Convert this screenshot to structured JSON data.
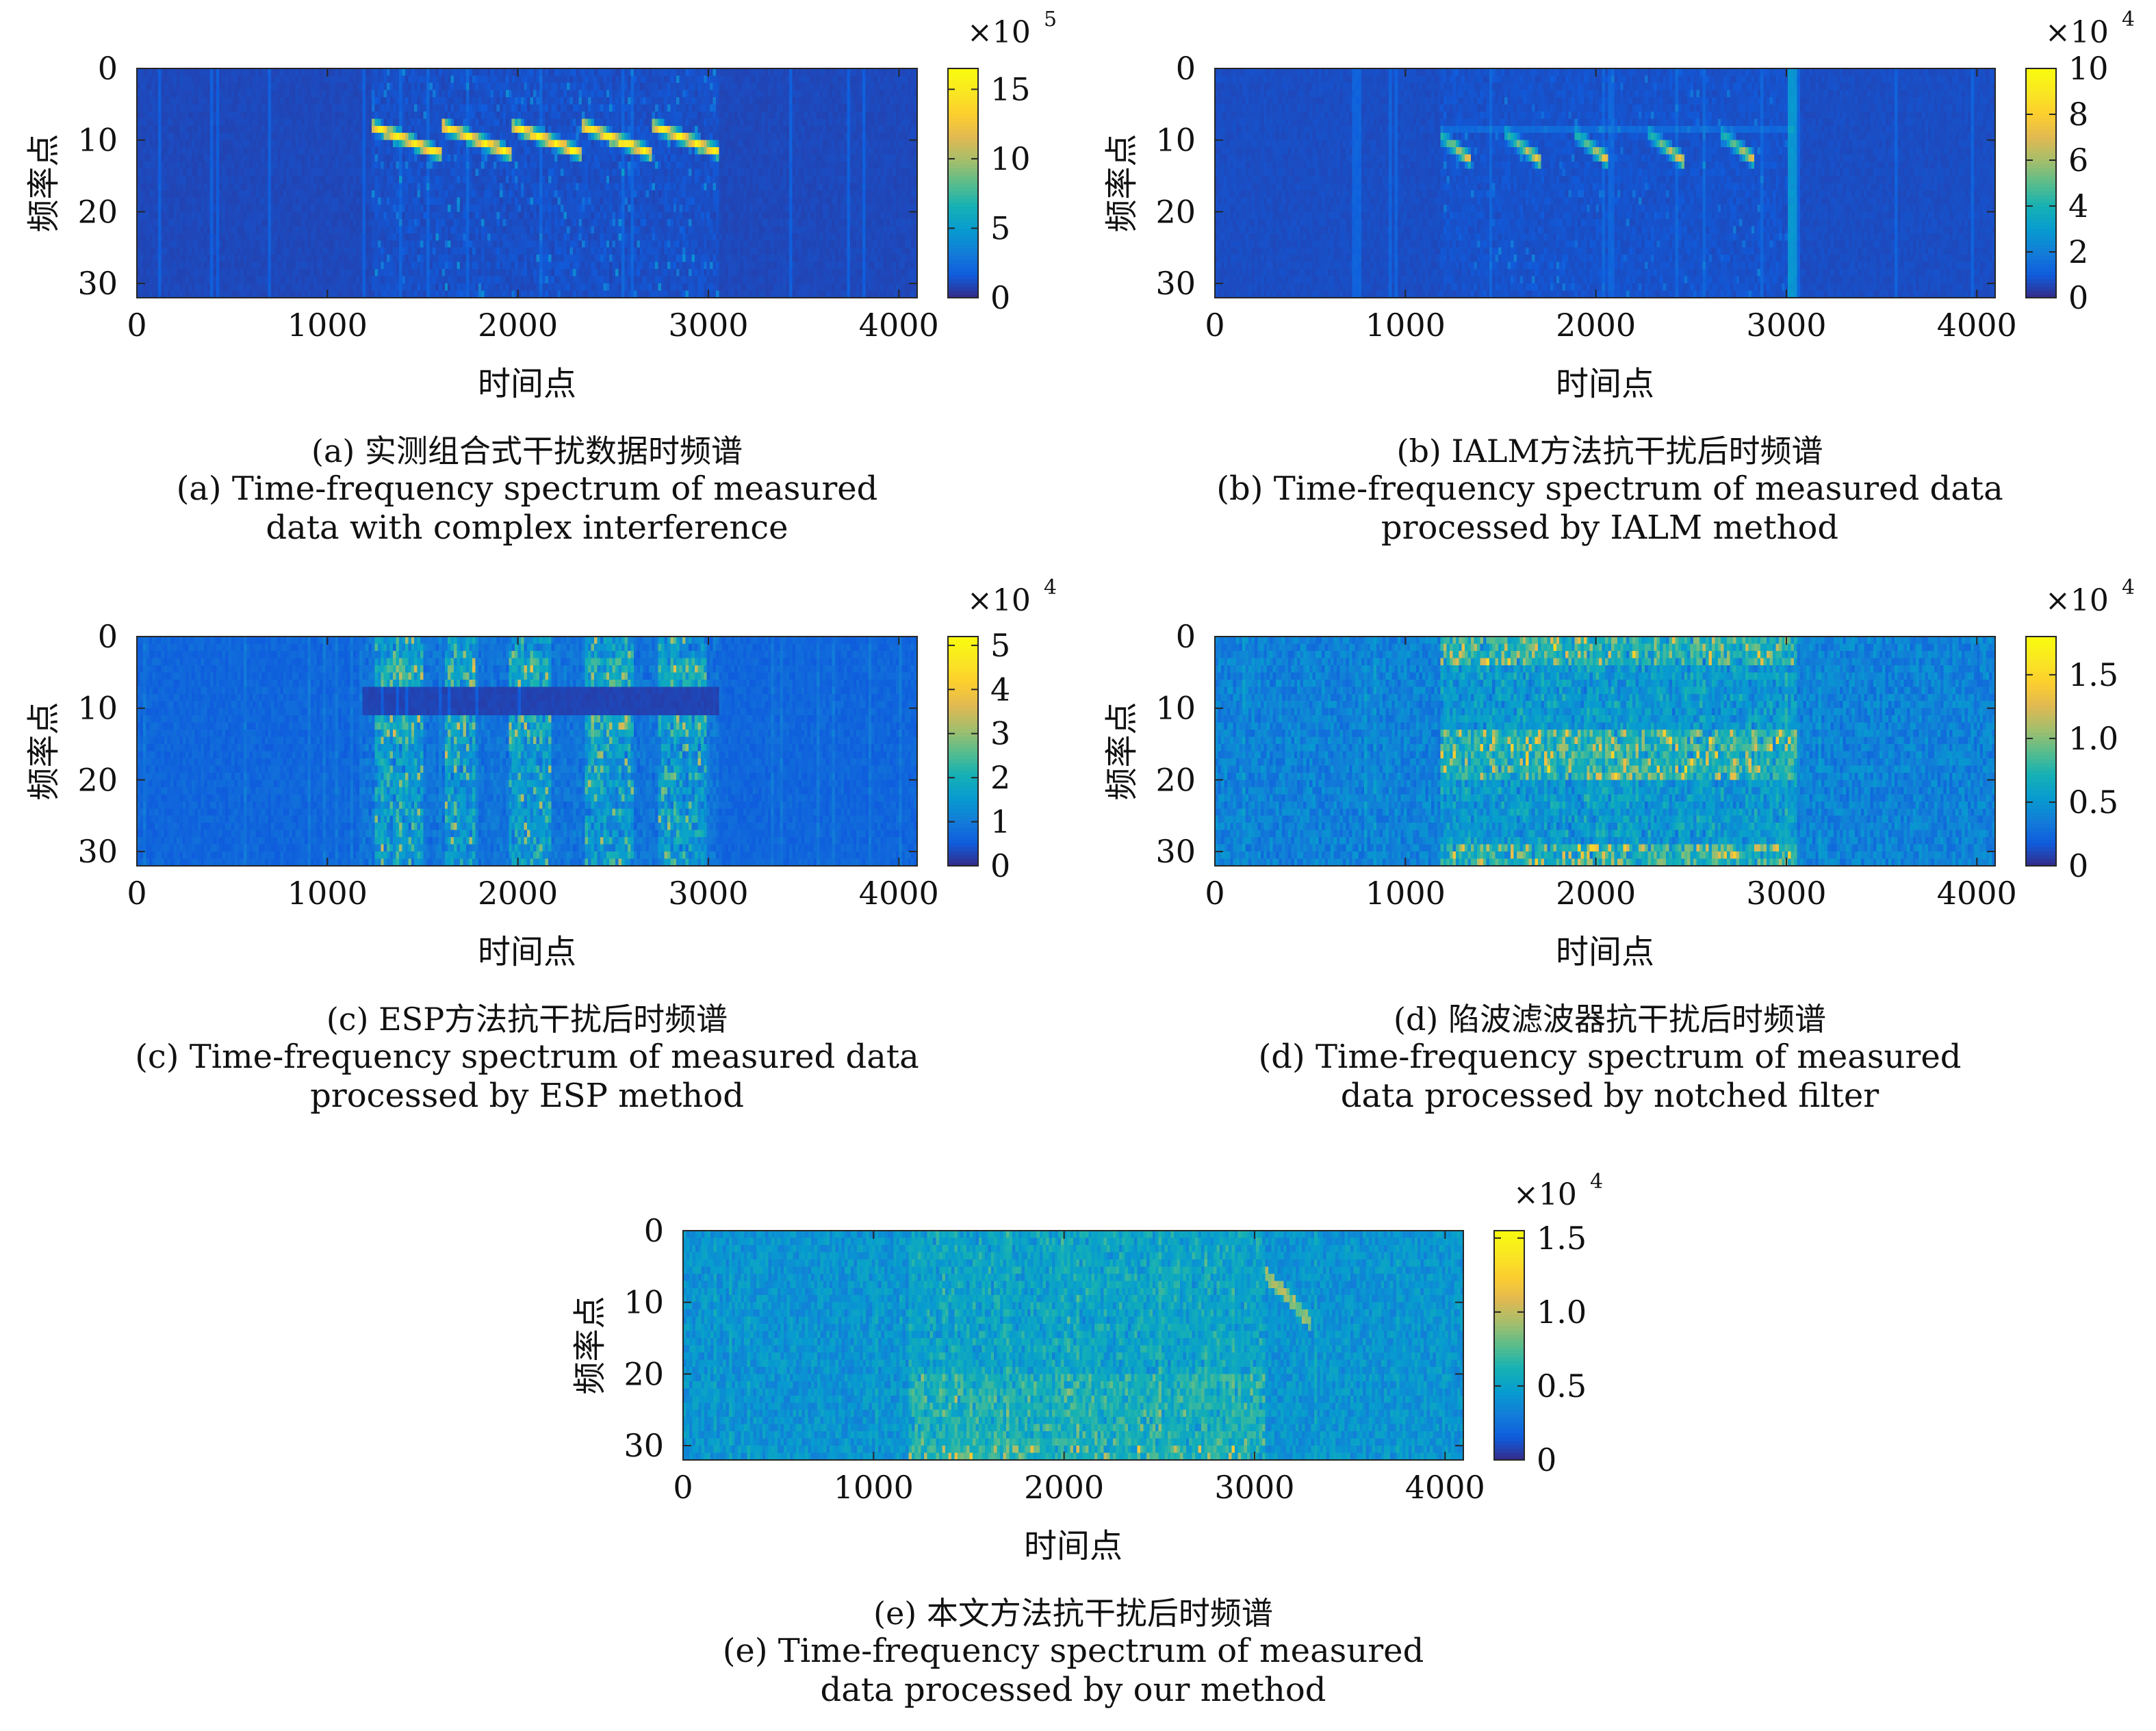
{
  "figure": {
    "x_axis_label": "时间点",
    "y_axis_label": "频率点"
  },
  "chart_data": [
    {
      "id": "a",
      "type": "heatmap",
      "xlabel": "时间点",
      "ylabel": "频率点",
      "xlim": [
        0,
        4096
      ],
      "ylim": [
        0,
        32
      ],
      "x_ticks": [
        "0",
        "1000",
        "2000",
        "3000",
        "4000"
      ],
      "y_ticks": [
        "0",
        "10",
        "20",
        "30"
      ],
      "colormap": "parula",
      "colorbar": {
        "exponent_label": "×10",
        "exponent": "5",
        "vmax": 16.5,
        "ticks": [
          0,
          5,
          10,
          15
        ],
        "tick_labels": [
          "0",
          "5",
          "10",
          "15"
        ]
      },
      "active_span": [
        1230,
        3060
      ],
      "caption_zh": "(a) 实测组合式干扰数据时频谱",
      "caption_en": [
        "(a) Time-frequency spectrum of measured",
        "data with complex interference"
      ]
    },
    {
      "id": "b",
      "type": "heatmap",
      "xlabel": "时间点",
      "ylabel": "频率点",
      "xlim": [
        0,
        4096
      ],
      "ylim": [
        0,
        32
      ],
      "x_ticks": [
        "0",
        "1000",
        "2000",
        "3000",
        "4000"
      ],
      "y_ticks": [
        "0",
        "10",
        "20",
        "30"
      ],
      "colormap": "parula",
      "colorbar": {
        "exponent_label": "×10",
        "exponent": "4",
        "vmax": 10,
        "ticks": [
          0,
          2,
          4,
          6,
          8,
          10
        ],
        "tick_labels": [
          "0",
          "2",
          "4",
          "6",
          "8",
          "10"
        ]
      },
      "active_span": [
        1190,
        3040
      ],
      "caption_zh": "(b) IALM方法抗干扰后时频谱",
      "caption_en": [
        "(b) Time-frequency spectrum of measured data",
        "processed by IALM method"
      ]
    },
    {
      "id": "c",
      "type": "heatmap",
      "xlabel": "时间点",
      "ylabel": "频率点",
      "xlim": [
        0,
        4096
      ],
      "ylim": [
        0,
        32
      ],
      "x_ticks": [
        "0",
        "1000",
        "2000",
        "3000",
        "4000"
      ],
      "y_ticks": [
        "0",
        "10",
        "20",
        "30"
      ],
      "colormap": "parula",
      "colorbar": {
        "exponent_label": "×10",
        "exponent": "4",
        "vmax": 5.2,
        "ticks": [
          0,
          1,
          2,
          3,
          4,
          5
        ],
        "tick_labels": [
          "0",
          "1",
          "2",
          "3",
          "4",
          "5"
        ]
      },
      "active_span": [
        1190,
        3050
      ],
      "caption_zh": "(c) ESP方法抗干扰后时频谱",
      "caption_en": [
        "(c) Time-frequency spectrum of measured data",
        "processed by ESP method"
      ]
    },
    {
      "id": "d",
      "type": "heatmap",
      "xlabel": "时间点",
      "ylabel": "频率点",
      "xlim": [
        0,
        4096
      ],
      "ylim": [
        0,
        32
      ],
      "x_ticks": [
        "0",
        "1000",
        "2000",
        "3000",
        "4000"
      ],
      "y_ticks": [
        "0",
        "10",
        "20",
        "30"
      ],
      "colormap": "parula",
      "colorbar": {
        "exponent_label": "×10",
        "exponent": "4",
        "vmax": 1.8,
        "ticks": [
          0,
          0.5,
          1.0,
          1.5
        ],
        "tick_labels": [
          "0",
          "0.5",
          "1.0",
          "1.5"
        ]
      },
      "active_span": [
        1190,
        3050
      ],
      "caption_zh": "(d) 陷波滤波器抗干扰后时频谱",
      "caption_en": [
        "(d) Time-frequency spectrum of measured",
        "data processed by notched filter"
      ]
    },
    {
      "id": "e",
      "type": "heatmap",
      "xlabel": "时间点",
      "ylabel": "频率点",
      "xlim": [
        0,
        4096
      ],
      "ylim": [
        0,
        32
      ],
      "x_ticks": [
        "0",
        "1000",
        "2000",
        "3000",
        "4000"
      ],
      "y_ticks": [
        "0",
        "10",
        "20",
        "30"
      ],
      "colormap": "parula",
      "colorbar": {
        "exponent_label": "×10",
        "exponent": "4",
        "vmax": 1.55,
        "ticks": [
          0,
          0.5,
          1.0,
          1.5
        ],
        "tick_labels": [
          "0",
          "0.5",
          "1.0",
          "1.5"
        ]
      },
      "active_span": [
        1190,
        3050
      ],
      "caption_zh": "(e) 本文方法抗干扰后时频谱",
      "caption_en": [
        "(e) Time-frequency spectrum of measured",
        "data processed by our method"
      ]
    }
  ]
}
